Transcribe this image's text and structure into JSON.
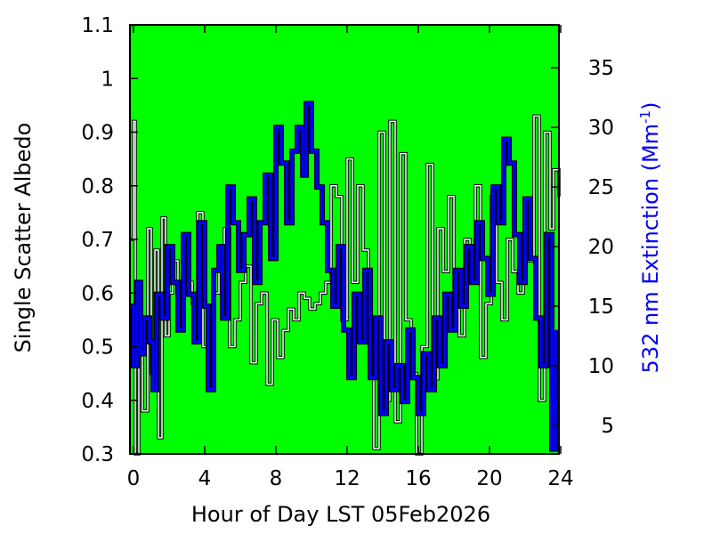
{
  "chart_data": {
    "type": "line",
    "xlabel": "Hour of Day LST 05Feb2026",
    "ylabel_left": "Single Scatter Albedo",
    "ylabel_right_main": "532 nm Extinction (Mm",
    "ylabel_right_sup": "-1",
    "ylabel_right_close": ")",
    "xlim": [
      -0.2,
      23.9
    ],
    "ylim_left": [
      0.3,
      1.1
    ],
    "ylim_right": [
      2.6,
      38.6
    ],
    "x_ticks": [
      0,
      4,
      8,
      12,
      16,
      20,
      24
    ],
    "y_ticks_left": [
      0.3,
      0.4,
      0.5,
      0.6,
      0.7,
      0.8,
      0.9,
      1,
      1.1
    ],
    "y_ticks_right": [
      5,
      10,
      15,
      20,
      25,
      30,
      35
    ],
    "background_color": "#00ff00",
    "series": [
      {
        "axis": "left",
        "color": "#ffffff",
        "outline": "#000000",
        "x": [
          -0.2,
          0.0,
          0.1,
          0.3,
          0.5,
          0.8,
          1.0,
          1.2,
          1.4,
          1.6,
          1.8,
          2.0,
          2.2,
          2.5,
          2.8,
          3.0,
          3.3,
          3.6,
          3.9,
          4.2,
          4.5,
          4.8,
          5.1,
          5.4,
          5.7,
          6.0,
          6.3,
          6.6,
          6.9,
          7.2,
          7.5,
          7.8,
          8.1,
          8.4,
          8.7,
          9.0,
          9.3,
          9.6,
          9.9,
          10.2,
          10.5,
          10.8,
          11.1,
          11.4,
          11.7,
          12.0,
          12.3,
          12.6,
          12.9,
          13.2,
          13.5,
          13.8,
          14.1,
          14.4,
          14.7,
          15.0,
          15.3,
          15.6,
          15.9,
          16.2,
          16.5,
          16.8,
          17.1,
          17.4,
          17.7,
          18.0,
          18.3,
          18.6,
          18.9,
          19.2,
          19.5,
          19.8,
          20.1,
          20.4,
          20.7,
          21.0,
          21.3,
          21.6,
          21.9,
          22.2,
          22.5,
          22.8,
          23.1,
          23.4,
          23.6,
          23.9
        ],
        "y": [
          0.7,
          0.92,
          0.3,
          0.55,
          0.38,
          0.72,
          0.45,
          0.68,
          0.33,
          0.74,
          0.52,
          0.6,
          0.66,
          0.55,
          0.7,
          0.62,
          0.58,
          0.75,
          0.5,
          0.46,
          0.6,
          0.68,
          0.72,
          0.5,
          0.55,
          0.62,
          0.65,
          0.47,
          0.58,
          0.6,
          0.43,
          0.55,
          0.48,
          0.53,
          0.57,
          0.55,
          0.6,
          0.59,
          0.57,
          0.58,
          0.6,
          0.62,
          0.8,
          0.78,
          0.55,
          0.85,
          0.62,
          0.8,
          0.68,
          0.55,
          0.31,
          0.9,
          0.4,
          0.92,
          0.36,
          0.86,
          0.55,
          0.45,
          0.3,
          0.5,
          0.84,
          0.44,
          0.72,
          0.64,
          0.78,
          0.6,
          0.52,
          0.7,
          0.66,
          0.8,
          0.48,
          0.58,
          0.78,
          0.62,
          0.55,
          0.7,
          0.64,
          0.6,
          0.7,
          0.66,
          0.93,
          0.4,
          0.9,
          0.72,
          0.83,
          0.78
        ]
      },
      {
        "axis": "right",
        "color": "#0000ff",
        "outline": "#000000",
        "x": [
          -0.2,
          0.0,
          0.2,
          0.4,
          0.6,
          0.9,
          1.1,
          1.3,
          1.6,
          1.9,
          2.2,
          2.5,
          2.8,
          3.1,
          3.4,
          3.7,
          4.0,
          4.2,
          4.5,
          4.8,
          5.0,
          5.3,
          5.6,
          5.9,
          6.2,
          6.5,
          6.8,
          7.1,
          7.4,
          7.7,
          8.0,
          8.3,
          8.6,
          8.9,
          9.2,
          9.5,
          9.7,
          10.0,
          10.3,
          10.6,
          10.9,
          11.2,
          11.5,
          11.8,
          12.1,
          12.4,
          12.7,
          13.0,
          13.3,
          13.6,
          13.9,
          14.2,
          14.5,
          14.8,
          15.1,
          15.4,
          15.7,
          16.0,
          16.3,
          16.6,
          16.9,
          17.2,
          17.5,
          17.8,
          18.1,
          18.4,
          18.7,
          19.0,
          19.3,
          19.6,
          19.9,
          20.2,
          20.5,
          20.8,
          21.1,
          21.4,
          21.7,
          22.0,
          22.3,
          22.6,
          22.9,
          23.2,
          23.5,
          23.7
        ],
        "y": [
          15,
          10,
          17,
          11,
          14,
          12,
          8,
          16,
          14,
          20,
          17,
          13,
          21,
          16,
          12,
          22,
          15,
          8,
          18,
          20,
          14,
          25,
          22,
          18,
          21,
          24,
          17,
          22,
          26,
          19,
          30,
          27,
          22,
          28,
          30,
          26,
          32,
          28,
          25,
          22,
          18,
          15,
          20,
          13,
          9,
          16,
          12,
          18,
          9,
          14,
          6,
          12,
          8,
          10,
          7,
          13,
          9,
          6,
          11,
          8,
          14,
          10,
          16,
          13,
          18,
          15,
          20,
          17,
          22,
          19,
          16,
          25,
          22,
          29,
          27,
          21,
          17,
          24,
          19,
          14,
          10,
          21,
          3,
          13
        ]
      }
    ]
  }
}
